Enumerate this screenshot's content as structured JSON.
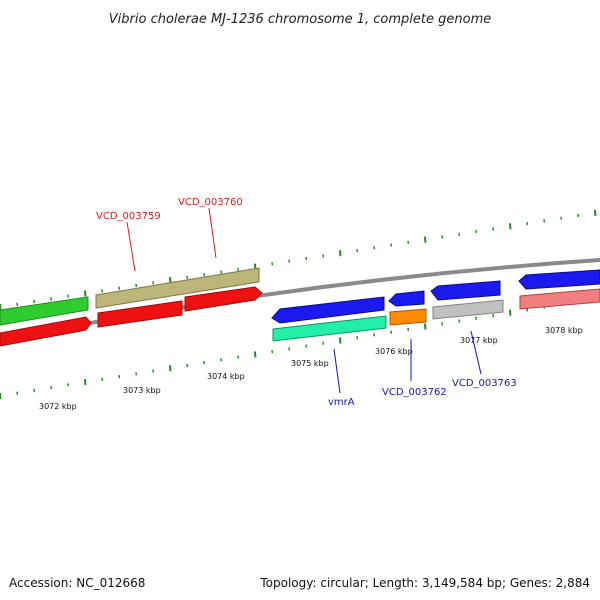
{
  "header": {
    "title": "Vibrio cholerae MJ-1236 chromosome 1, complete genome"
  },
  "footer": {
    "accession": "Accession: NC_012668",
    "summary": "Topology: circular; Length: 3,149,584 bp; Genes: 2,884"
  },
  "scale": {
    "labels": [
      "3072 kbp",
      "3073 kbp",
      "3074 kbp",
      "3075 kbp",
      "3076 kbp",
      "3077 kbp",
      "3078 kbp"
    ]
  },
  "gene_labels": [
    {
      "text": "VCD_003759",
      "color": "#e31a1c"
    },
    {
      "text": "VCD_003760",
      "color": "#e31a1c"
    },
    {
      "text": "vmrA",
      "color": "#1515b8"
    },
    {
      "text": "VCD_003762",
      "color": "#1515b8"
    },
    {
      "text": "VCD_003763",
      "color": "#1515b8"
    }
  ],
  "colors": {
    "backbone": "#8a8a8a",
    "tick": "#228b22",
    "green": "#2ecc2e",
    "red": "#ee1111",
    "olive": "#bdb67a",
    "blue": "#1a1aee",
    "teal": "#22f0a8",
    "orange": "#ff8c00",
    "grey": "#c0c0c0",
    "pink": "#f08080"
  }
}
